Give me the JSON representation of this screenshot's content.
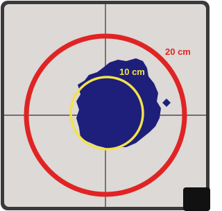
{
  "labels": {
    "outer": "20 cm",
    "inner": "10 cm"
  }
}
